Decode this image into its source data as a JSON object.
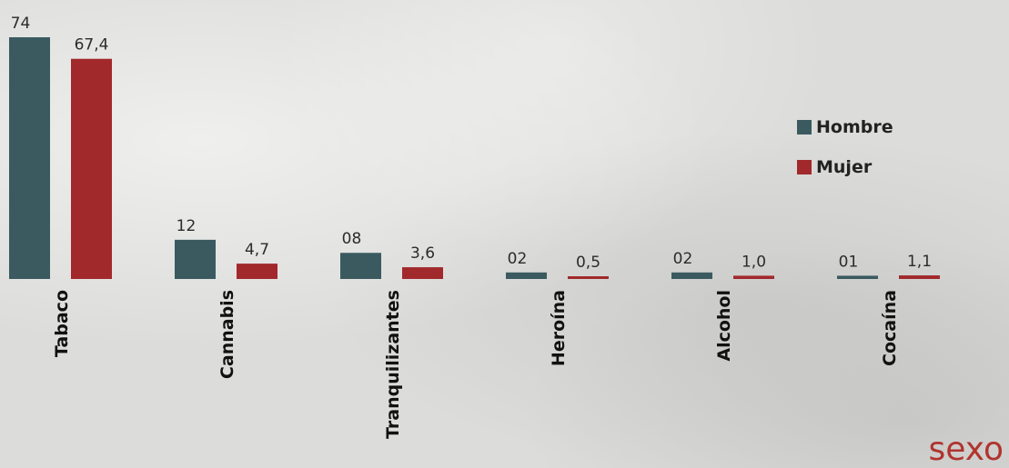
{
  "chart_data": {
    "type": "bar",
    "categories": [
      "Tabaco",
      "Cannabis",
      "Tranquilizantes",
      "Heroína",
      "Alcohol",
      "Cocaína"
    ],
    "series": [
      {
        "name": "Hombre",
        "color": "#3a5a60",
        "values": [
          74,
          12,
          8,
          2,
          2,
          1
        ],
        "labels": [
          "74",
          "12",
          "08",
          "02",
          "02",
          "01"
        ]
      },
      {
        "name": "Mujer",
        "color": "#a1292c",
        "values": [
          67.4,
          4.7,
          3.6,
          0.5,
          1.0,
          1.1
        ],
        "labels": [
          "67,4",
          "4,7",
          "3,6",
          "0,5",
          "1,0",
          "1,1"
        ]
      }
    ],
    "grid": false,
    "legend_position": "right"
  },
  "corner_text": "sexo"
}
